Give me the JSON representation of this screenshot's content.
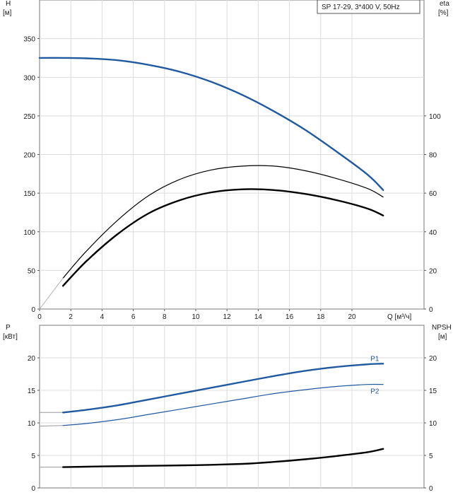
{
  "legend": {
    "text": "SP 17-29, 3*400 V, 50Hz"
  },
  "chart_data": [
    {
      "type": "line",
      "title": "SP 17-29, 3*400 V, 50Hz",
      "x_axis": {
        "label": "Q [м³/ч]",
        "lim": [
          0,
          22.5
        ],
        "ticks": [
          "0",
          "2",
          "4",
          "6",
          "8",
          "10",
          "12",
          "14",
          "16",
          "18",
          "20"
        ],
        "tick_values": [
          0,
          2,
          4,
          6,
          8,
          10,
          12,
          14,
          16,
          18,
          20
        ]
      },
      "y_left": {
        "label_line1": "H",
        "label_line2": "[м]",
        "lim": [
          0,
          400
        ],
        "ticks": [
          "0",
          "50",
          "100",
          "150",
          "200",
          "250",
          "300",
          "350"
        ],
        "tick_values": [
          0,
          50,
          100,
          150,
          200,
          250,
          300,
          350
        ]
      },
      "y_right": {
        "label_line1": "eta",
        "label_line2": "[%]",
        "lim": [
          0,
          160
        ],
        "ticks": [
          "0",
          "20",
          "40",
          "60",
          "80",
          "100"
        ],
        "tick_values": [
          0,
          20,
          40,
          60,
          80,
          100
        ]
      },
      "grid": true,
      "series": [
        {
          "axis": "left",
          "color": "#1f5aa0",
          "width": 2.4,
          "x": [
            0,
            1.5,
            3,
            5,
            7,
            9,
            11,
            13,
            15,
            17,
            19,
            21,
            22
          ],
          "y": [
            325,
            325,
            324.5,
            322,
            316,
            307,
            294,
            277,
            256,
            232,
            204,
            174,
            154
          ]
        },
        {
          "axis": "left",
          "color": "#000000",
          "width": 1.2,
          "x": [
            1.5,
            3,
            5,
            7,
            9,
            11,
            13,
            15,
            17,
            19,
            21,
            22
          ],
          "y": [
            40,
            75,
            115,
            147,
            168,
            180,
            185,
            185,
            179,
            169,
            156,
            145
          ]
        },
        {
          "axis": "left",
          "color": "#000000",
          "width": 2.4,
          "x": [
            1.5,
            3,
            5,
            7,
            9,
            11,
            13,
            15,
            17,
            19,
            21,
            22
          ],
          "y": [
            30,
            62,
            97,
            124,
            141,
            151,
            155,
            154,
            149,
            141,
            130,
            121
          ]
        },
        {
          "axis": "left",
          "color": "#b0b0b0",
          "width": 1,
          "x": [
            0,
            1.5
          ],
          "y": [
            0,
            40
          ]
        }
      ]
    },
    {
      "type": "line",
      "x_axis": {
        "lim": [
          0,
          22.5
        ]
      },
      "y_left": {
        "label_line1": "P",
        "label_line2": "[кВт]",
        "lim": [
          0,
          25
        ],
        "ticks": [
          "0",
          "5",
          "10",
          "15",
          "20"
        ],
        "tick_values": [
          0,
          5,
          10,
          15,
          20
        ]
      },
      "y_right": {
        "label_line1": "NPSH",
        "label_line2": "[м]",
        "lim": [
          0,
          25
        ],
        "ticks": [
          "0",
          "5",
          "10",
          "15",
          "20"
        ],
        "tick_values": [
          0,
          5,
          10,
          15,
          20
        ]
      },
      "grid": true,
      "series": [
        {
          "name": "P1",
          "axis": "left",
          "color": "#1f5aa0",
          "width": 2.4,
          "x": [
            1.5,
            3,
            5,
            7,
            9,
            11,
            13,
            15,
            17,
            19,
            21,
            22
          ],
          "y": [
            11.6,
            12.0,
            12.7,
            13.6,
            14.5,
            15.4,
            16.3,
            17.2,
            18.0,
            18.6,
            19.0,
            19.1
          ],
          "pre_x": [
            0,
            1.5
          ],
          "pre_y": [
            11.6,
            11.6
          ]
        },
        {
          "name": "P2",
          "axis": "left",
          "color": "#1f5aa0",
          "width": 1.2,
          "x": [
            1.5,
            3,
            5,
            7,
            9,
            11,
            13,
            15,
            17,
            19,
            21,
            22
          ],
          "y": [
            9.6,
            9.9,
            10.5,
            11.3,
            12.1,
            12.9,
            13.7,
            14.5,
            15.1,
            15.6,
            15.9,
            15.9
          ],
          "pre_x": [
            0,
            1.5
          ],
          "pre_y": [
            9.5,
            9.6
          ]
        },
        {
          "axis": "right",
          "color": "#000000",
          "width": 2.4,
          "x": [
            1.5,
            4,
            7,
            10,
            13,
            15,
            17,
            19,
            21,
            22
          ],
          "y": [
            3.2,
            3.3,
            3.4,
            3.5,
            3.7,
            4.0,
            4.4,
            4.9,
            5.5,
            6.0
          ],
          "pre_x": [
            0,
            1.5
          ],
          "pre_y": [
            3.2,
            3.2
          ]
        }
      ]
    }
  ]
}
